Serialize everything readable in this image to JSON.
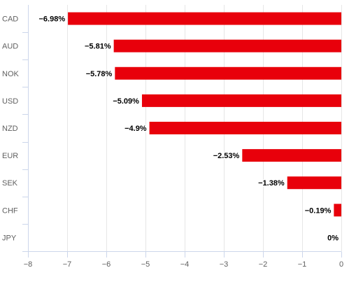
{
  "chart_data": {
    "type": "bar",
    "orientation": "horizontal",
    "categories": [
      "CAD",
      "AUD",
      "NOK",
      "USD",
      "NZD",
      "EUR",
      "SEK",
      "CHF",
      "JPY"
    ],
    "values": [
      -6.98,
      -5.81,
      -5.78,
      -5.09,
      -4.9,
      -2.53,
      -1.38,
      -0.19,
      0
    ],
    "data_labels": [
      "−6.98%",
      "−5.81%",
      "−5.78%",
      "−5.09%",
      "−4.9%",
      "−2.53%",
      "−1.38%",
      "−0.19%",
      "0%"
    ],
    "x_ticks": [
      -8,
      -7,
      -6,
      -5,
      -4,
      -3,
      -2,
      -1,
      0
    ],
    "x_tick_labels": [
      "−8",
      "−7",
      "−6",
      "−5",
      "−4",
      "−3",
      "−2",
      "−1",
      "0"
    ],
    "xlim": [
      -8,
      0
    ],
    "grid": true,
    "legend": "none",
    "title": "",
    "xlabel": "",
    "ylabel": "",
    "bar_color": "#e8000b"
  }
}
